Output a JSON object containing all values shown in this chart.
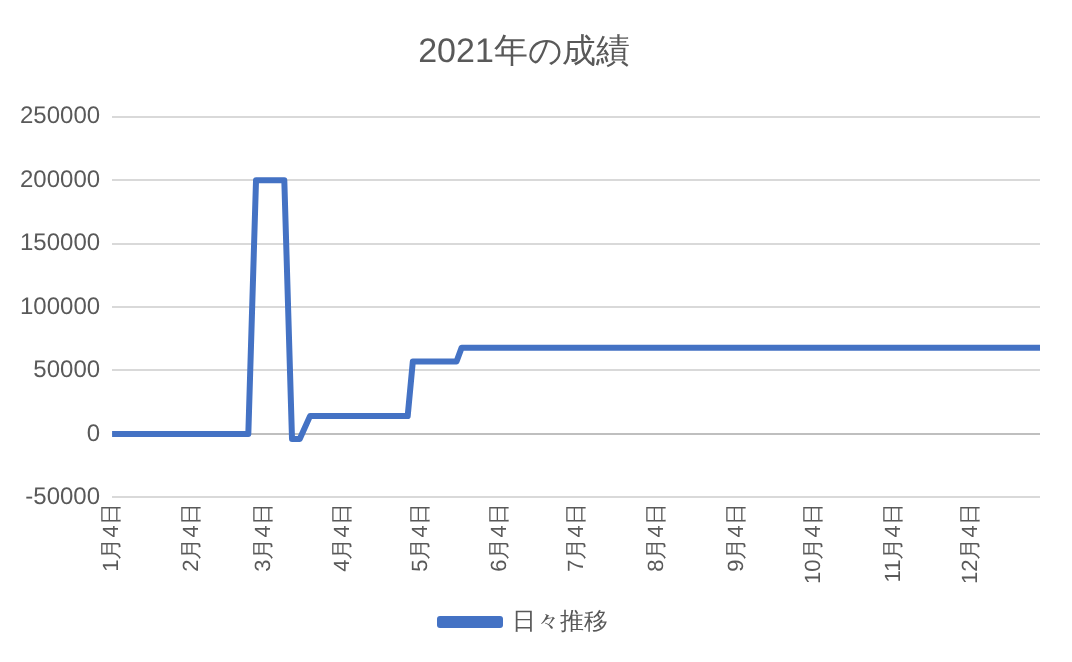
{
  "chart_data": {
    "type": "line",
    "title": "2021年の成績",
    "x": [
      "2021-01-04",
      "2021-02-26",
      "2021-03-01",
      "2021-03-12",
      "2021-03-15",
      "2021-03-18",
      "2021-03-22",
      "2021-04-29",
      "2021-05-01",
      "2021-05-18",
      "2021-05-20",
      "2021-12-31"
    ],
    "series": [
      {
        "name": "日々推移",
        "color": "#4472c4",
        "values": [
          0,
          0,
          200000,
          200000,
          -4000,
          -4000,
          14000,
          14000,
          57000,
          57000,
          68000,
          68000
        ]
      }
    ],
    "xlim": [
      "2021-01-04",
      "2021-12-31"
    ],
    "xticks": [
      {
        "value": "2021-01-04",
        "label": "1月4日"
      },
      {
        "value": "2021-02-04",
        "label": "2月4日"
      },
      {
        "value": "2021-03-04",
        "label": "3月4日"
      },
      {
        "value": "2021-04-04",
        "label": "4月4日"
      },
      {
        "value": "2021-05-04",
        "label": "5月4日"
      },
      {
        "value": "2021-06-04",
        "label": "6月4日"
      },
      {
        "value": "2021-07-04",
        "label": "7月4日"
      },
      {
        "value": "2021-08-04",
        "label": "8月4日"
      },
      {
        "value": "2021-09-04",
        "label": "9月4日"
      },
      {
        "value": "2021-10-04",
        "label": "10月4日"
      },
      {
        "value": "2021-11-04",
        "label": "11月4日"
      },
      {
        "value": "2021-12-04",
        "label": "12月4日"
      }
    ],
    "ylim": [
      -50000,
      250000
    ],
    "yticks": [
      -50000,
      0,
      50000,
      100000,
      150000,
      200000,
      250000
    ],
    "grid": "y",
    "legend": "bottom",
    "marker": "none",
    "line_style": "solid"
  }
}
